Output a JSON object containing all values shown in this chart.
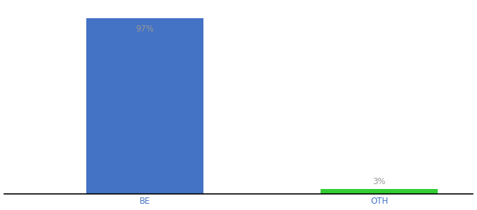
{
  "categories": [
    "BE",
    "OTH"
  ],
  "values": [
    97,
    3
  ],
  "bar_colors": [
    "#4472C4",
    "#33CC33"
  ],
  "label_texts": [
    "97%",
    "3%"
  ],
  "label_color": "#999999",
  "xlabel_color": "#4472C4",
  "background_color": "#ffffff",
  "ylim": [
    0,
    105
  ],
  "bar_width": 0.5,
  "label_fontsize": 8.5,
  "tick_fontsize": 8.5,
  "xlim": [
    -0.1,
    1.9
  ]
}
